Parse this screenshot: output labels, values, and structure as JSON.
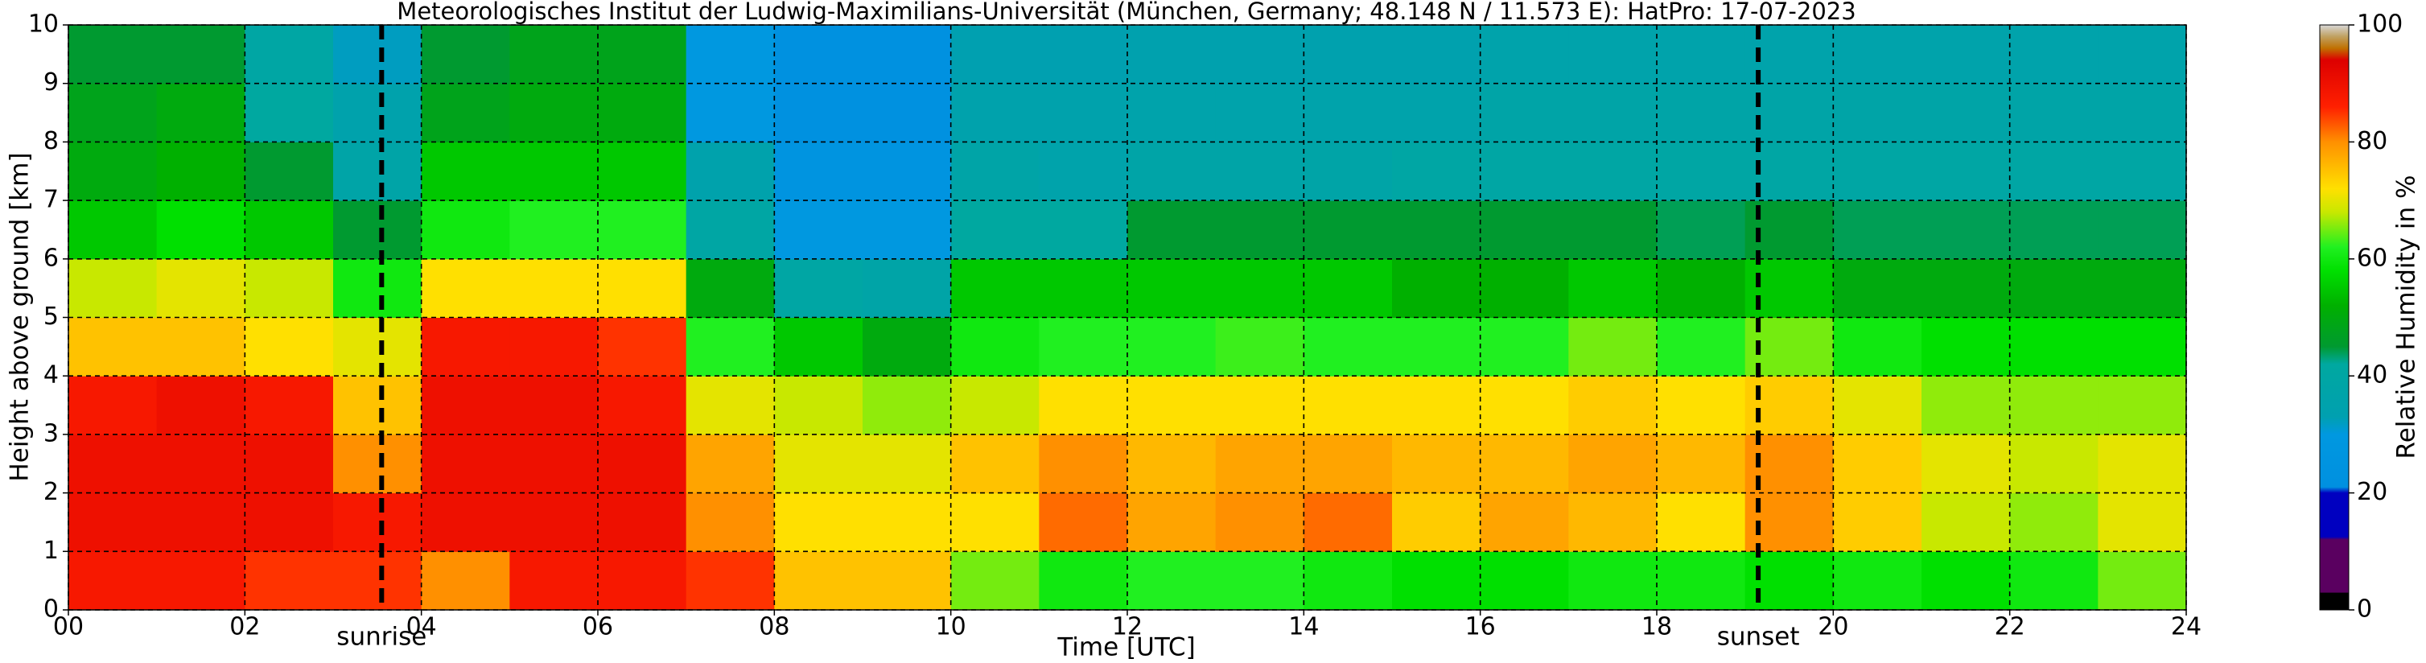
{
  "chart_data": {
    "type": "heatmap",
    "title": "Meteorologisches Institut der Ludwig-Maximilians-Universität (München, Germany; 48.148 N / 11.573 E):    HatPro: 17-07-2023",
    "x_label": "Time [UTC]",
    "y_label": "Height above ground [km]",
    "colorbar_label": "Relative Humidity in %",
    "x": [
      0.5,
      1.5,
      2.5,
      3.5,
      4.5,
      5.5,
      6.5,
      7.5,
      8.5,
      9.5,
      10.5,
      11.5,
      12.5,
      13.5,
      14.5,
      15.5,
      16.5,
      17.5,
      18.5,
      19.5,
      20.5,
      21.5,
      22.5,
      23.5
    ],
    "y": [
      0.5,
      1.5,
      2.5,
      3.5,
      4.5,
      5.5,
      6.5,
      7.5,
      8.5,
      9.5
    ],
    "z": [
      [
        88,
        88,
        85,
        85,
        80,
        88,
        88,
        85,
        75,
        75,
        65,
        60,
        62,
        62,
        60,
        58,
        58,
        60,
        60,
        58,
        60,
        58,
        60,
        65
      ],
      [
        90,
        90,
        90,
        88,
        90,
        90,
        90,
        80,
        72,
        72,
        72,
        82,
        78,
        80,
        82,
        74,
        78,
        76,
        72,
        80,
        74,
        68,
        66,
        70
      ],
      [
        90,
        90,
        90,
        80,
        90,
        90,
        90,
        78,
        70,
        70,
        75,
        80,
        76,
        78,
        78,
        76,
        76,
        78,
        76,
        80,
        74,
        70,
        68,
        70
      ],
      [
        88,
        90,
        88,
        75,
        90,
        90,
        88,
        70,
        68,
        66,
        68,
        72,
        72,
        72,
        72,
        72,
        72,
        74,
        72,
        74,
        70,
        66,
        66,
        66
      ],
      [
        75,
        75,
        72,
        70,
        88,
        88,
        85,
        62,
        55,
        50,
        60,
        62,
        62,
        63,
        62,
        62,
        62,
        65,
        62,
        65,
        60,
        58,
        58,
        58
      ],
      [
        68,
        70,
        68,
        60,
        72,
        72,
        72,
        50,
        40,
        38,
        55,
        55,
        55,
        55,
        55,
        52,
        52,
        55,
        52,
        55,
        50,
        50,
        50,
        50
      ],
      [
        55,
        58,
        55,
        45,
        60,
        62,
        62,
        40,
        30,
        30,
        42,
        42,
        45,
        45,
        45,
        45,
        45,
        45,
        44,
        45,
        44,
        44,
        44,
        44
      ],
      [
        50,
        52,
        45,
        38,
        55,
        55,
        55,
        35,
        25,
        25,
        38,
        36,
        38,
        38,
        38,
        40,
        40,
        40,
        40,
        40,
        40,
        40,
        40,
        40
      ],
      [
        48,
        50,
        42,
        35,
        48,
        50,
        50,
        30,
        22,
        22,
        35,
        35,
        36,
        36,
        36,
        36,
        38,
        38,
        38,
        38,
        38,
        38,
        38,
        38
      ],
      [
        45,
        45,
        40,
        32,
        45,
        48,
        48,
        30,
        22,
        22,
        33,
        33,
        34,
        34,
        34,
        34,
        36,
        36,
        36,
        36,
        36,
        36,
        36,
        36
      ]
    ],
    "xlim": [
      0,
      24
    ],
    "ylim": [
      0,
      10
    ],
    "xticks": [
      {
        "value": 0,
        "label": "00"
      },
      {
        "value": 2,
        "label": "02"
      },
      {
        "value": 4,
        "label": "04"
      },
      {
        "value": 6,
        "label": "06"
      },
      {
        "value": 8,
        "label": "08"
      },
      {
        "value": 10,
        "label": "10"
      },
      {
        "value": 12,
        "label": "12"
      },
      {
        "value": 14,
        "label": "14"
      },
      {
        "value": 16,
        "label": "16"
      },
      {
        "value": 18,
        "label": "18"
      },
      {
        "value": 20,
        "label": "20"
      },
      {
        "value": 22,
        "label": "22"
      },
      {
        "value": 24,
        "label": "24"
      }
    ],
    "yticks": [
      0,
      1,
      2,
      3,
      4,
      5,
      6,
      7,
      8,
      9,
      10
    ],
    "clim": [
      0,
      100
    ],
    "cticks": [
      0,
      20,
      40,
      60,
      80,
      100
    ],
    "grid": true,
    "colorscale": [
      [
        0,
        "#000000"
      ],
      [
        2.9,
        "#000000"
      ],
      [
        3,
        "#5a0060"
      ],
      [
        12,
        "#5a0060"
      ],
      [
        12.5,
        "#0000c0"
      ],
      [
        20,
        "#0000c0"
      ],
      [
        21,
        "#0090e0"
      ],
      [
        30,
        "#0098e0"
      ],
      [
        33,
        "#00a0b0"
      ],
      [
        42,
        "#00a8a0"
      ],
      [
        45,
        "#009a30"
      ],
      [
        52,
        "#00b000"
      ],
      [
        58,
        "#00e000"
      ],
      [
        62,
        "#20f020"
      ],
      [
        68,
        "#c8e800"
      ],
      [
        72,
        "#ffe000"
      ],
      [
        80,
        "#ff9000"
      ],
      [
        86,
        "#ff2000"
      ],
      [
        94,
        "#dd0000"
      ],
      [
        96,
        "#c07000"
      ],
      [
        98,
        "#c0a060"
      ],
      [
        100,
        "#d8d8d8"
      ]
    ],
    "annotations": [
      {
        "text": "sunrise",
        "x": 3.55
      },
      {
        "text": "sunset",
        "x": 19.15
      }
    ]
  }
}
